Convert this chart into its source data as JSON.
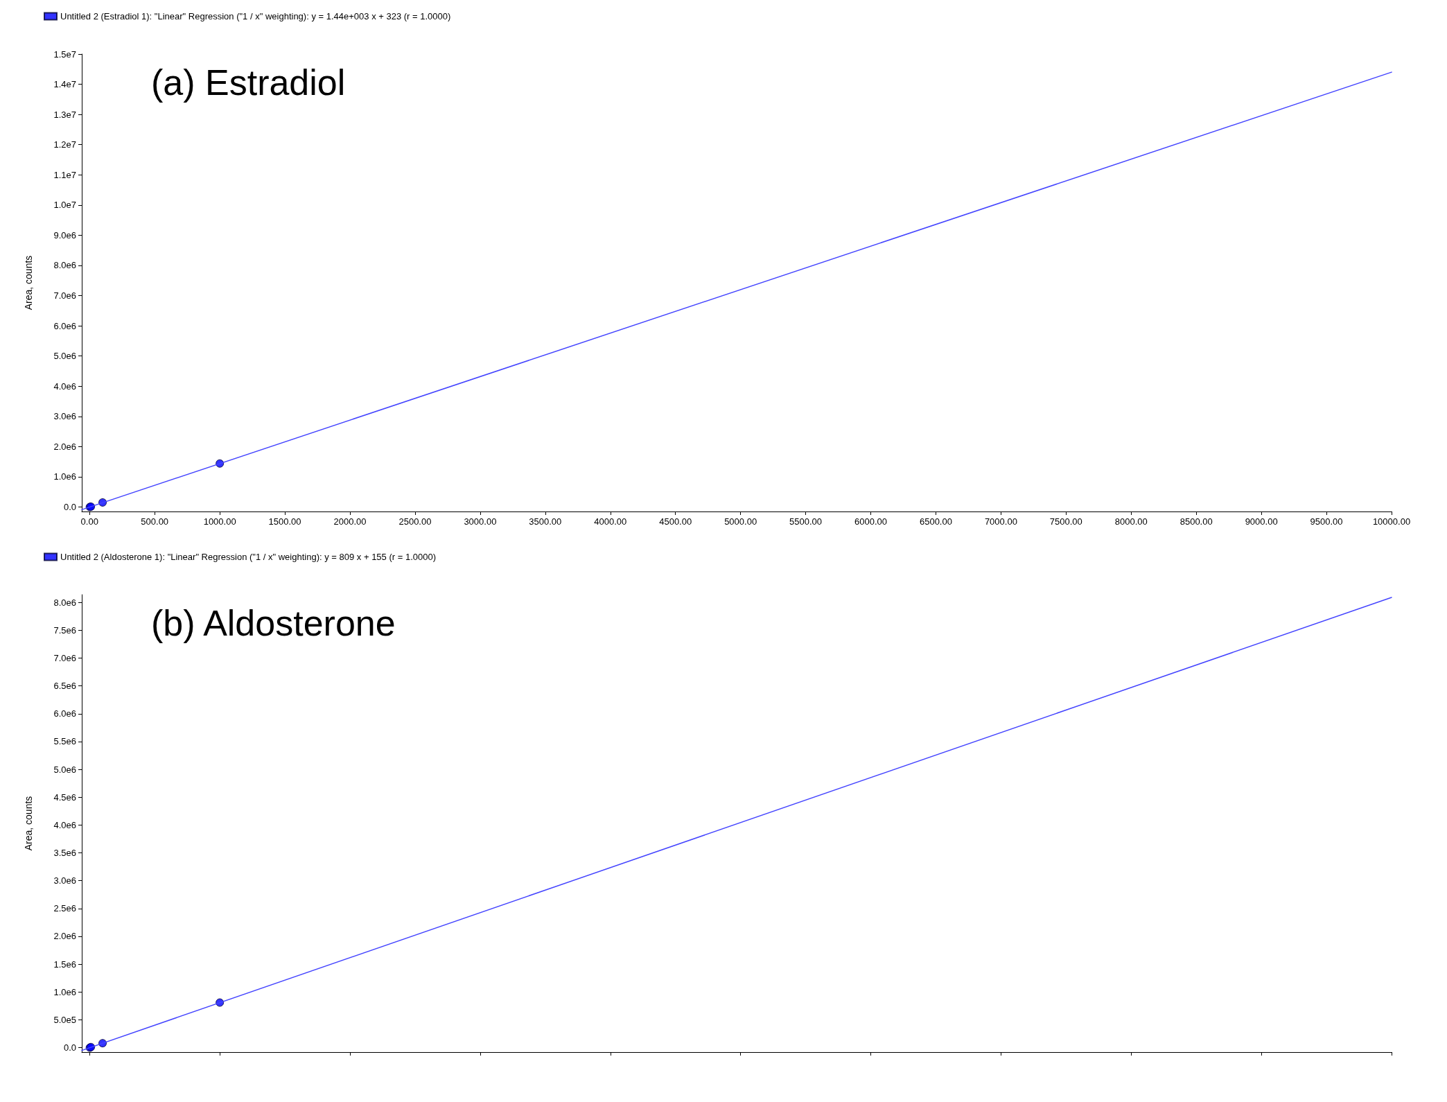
{
  "chart_data": [
    {
      "type": "scatter",
      "annotations": [
        "(a) Estradiol"
      ],
      "ylabel": "Area, counts",
      "legend": "top left",
      "grid": false,
      "marker": "circle",
      "xlim": [
        -60,
        10000
      ],
      "ylim": [
        -150000,
        15000000
      ],
      "xticks": [
        {
          "value": 0,
          "label": "0.00"
        },
        {
          "value": 500,
          "label": "500.00"
        },
        {
          "value": 1000,
          "label": "1000.00"
        },
        {
          "value": 1500,
          "label": "1500.00"
        },
        {
          "value": 2000,
          "label": "2000.00"
        },
        {
          "value": 2500,
          "label": "2500.00"
        },
        {
          "value": 3000,
          "label": "3000.00"
        },
        {
          "value": 3500,
          "label": "3500.00"
        },
        {
          "value": 4000,
          "label": "4000.00"
        },
        {
          "value": 4500,
          "label": "4500.00"
        },
        {
          "value": 5000,
          "label": "5000.00"
        },
        {
          "value": 5500,
          "label": "5500.00"
        },
        {
          "value": 6000,
          "label": "6000.00"
        },
        {
          "value": 6500,
          "label": "6500.00"
        },
        {
          "value": 7000,
          "label": "7000.00"
        },
        {
          "value": 7500,
          "label": "7500.00"
        },
        {
          "value": 8000,
          "label": "8000.00"
        },
        {
          "value": 8500,
          "label": "8500.00"
        },
        {
          "value": 9000,
          "label": "9000.00"
        },
        {
          "value": 9500,
          "label": "9500.00"
        },
        {
          "value": 10000,
          "label": "10000.00"
        }
      ],
      "yticks": [
        {
          "value": 0,
          "label": "0.0"
        },
        {
          "value": 1000000,
          "label": "1.0e6"
        },
        {
          "value": 2000000,
          "label": "2.0e6"
        },
        {
          "value": 3000000,
          "label": "3.0e6"
        },
        {
          "value": 4000000,
          "label": "4.0e6"
        },
        {
          "value": 5000000,
          "label": "5.0e6"
        },
        {
          "value": 6000000,
          "label": "6.0e6"
        },
        {
          "value": 7000000,
          "label": "7.0e6"
        },
        {
          "value": 8000000,
          "label": "8.0e6"
        },
        {
          "value": 9000000,
          "label": "9.0e6"
        },
        {
          "value": 10000000,
          "label": "1.0e7"
        },
        {
          "value": 11000000,
          "label": "1.1e7"
        },
        {
          "value": 12000000,
          "label": "1.2e7"
        },
        {
          "value": 13000000,
          "label": "1.3e7"
        },
        {
          "value": 14000000,
          "label": "1.4e7"
        },
        {
          "value": 15000000,
          "label": "1.5e7"
        }
      ],
      "series": [
        {
          "type": "scatter",
          "name": "Untitled 2 (Estradiol 1): \"Linear\" Regression (\"1 / x\" weighting): y = 1.44e+003 x + 323 (r = 1.0000)",
          "color": "#0000ff",
          "x": [
            2,
            10,
            100,
            1000
          ],
          "values": [
            0,
            10000,
            150000,
            1440000
          ]
        },
        {
          "type": "line",
          "marker": "none",
          "line_style": "solid",
          "color": "#4444ff",
          "x": [
            -60,
            10000
          ],
          "values": [
            -90000,
            14400000
          ]
        }
      ]
    },
    {
      "type": "scatter",
      "annotations": [
        "(b) Aldosterone"
      ],
      "ylabel": "Area, counts",
      "legend": "top left",
      "grid": false,
      "marker": "circle",
      "tick_labels": "y",
      "xlim": [
        -60,
        10000
      ],
      "ylim": [
        -80000,
        8140000
      ],
      "xticks": [
        0,
        1000,
        2000,
        3000,
        4000,
        5000,
        6000,
        7000,
        8000,
        9000,
        10000
      ],
      "yticks": [
        {
          "value": 0,
          "label": "0.0"
        },
        {
          "value": 500000,
          "label": "5.0e5"
        },
        {
          "value": 1000000,
          "label": "1.0e6"
        },
        {
          "value": 1500000,
          "label": "1.5e6"
        },
        {
          "value": 2000000,
          "label": "2.0e6"
        },
        {
          "value": 2500000,
          "label": "2.5e6"
        },
        {
          "value": 3000000,
          "label": "3.0e6"
        },
        {
          "value": 3500000,
          "label": "3.5e6"
        },
        {
          "value": 4000000,
          "label": "4.0e6"
        },
        {
          "value": 4500000,
          "label": "4.5e6"
        },
        {
          "value": 5000000,
          "label": "5.0e6"
        },
        {
          "value": 5500000,
          "label": "5.5e6"
        },
        {
          "value": 6000000,
          "label": "6.0e6"
        },
        {
          "value": 6500000,
          "label": "6.5e6"
        },
        {
          "value": 7000000,
          "label": "7.0e6"
        },
        {
          "value": 7500000,
          "label": "7.5e6"
        },
        {
          "value": 8000000,
          "label": "8.0e6"
        }
      ],
      "series": [
        {
          "type": "scatter",
          "name": "Untitled 2 (Aldosterone 1): \"Linear\" Regression (\"1 / x\" weighting): y = 809 x + 155 (r = 1.0000)",
          "color": "#0000ff",
          "x": [
            2,
            10,
            100,
            1000
          ],
          "values": [
            0,
            10000,
            80000,
            810000
          ]
        },
        {
          "type": "line",
          "marker": "none",
          "line_style": "solid",
          "color": "#4444ff",
          "x": [
            -60,
            10000
          ],
          "values": [
            -50000,
            8090000
          ]
        }
      ]
    }
  ]
}
